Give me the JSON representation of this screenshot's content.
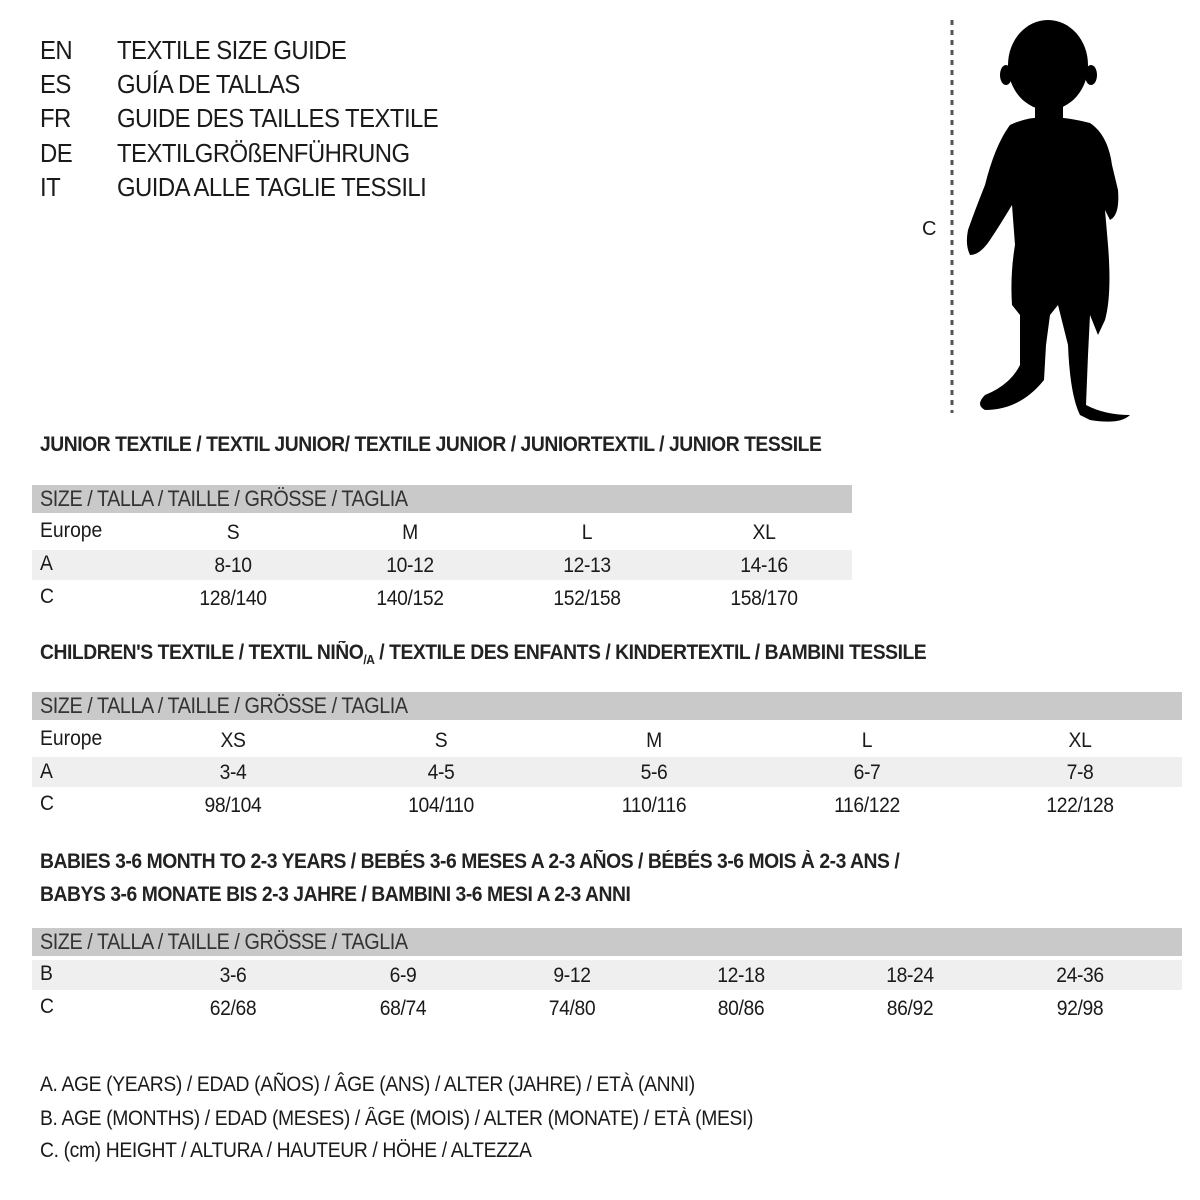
{
  "languages": [
    {
      "code": "EN",
      "text": "TEXTILE SIZE GUIDE"
    },
    {
      "code": "ES",
      "text": "GUÍA DE TALLAS"
    },
    {
      "code": "FR",
      "text": "GUIDE DES TAILLES TEXTILE"
    },
    {
      "code": "DE",
      "text": "TEXTILGRÖßENFÜHRUNG"
    },
    {
      "code": "IT",
      "text": "GUIDA ALLE TAGLIE TESSILI"
    }
  ],
  "figure": {
    "measure_label": "C",
    "icon": "child-silhouette"
  },
  "header_label": "SIZE / TALLA / TAILLE / GRÖSSE / TAGLIA",
  "colors": {
    "header_bg": "#c9c9c9",
    "row_shade": "#efefef"
  },
  "junior": {
    "title": "JUNIOR TEXTILE / TEXTIL JUNIOR/ TEXTILE JUNIOR / JUNIORTEXTIL / JUNIOR TESSILE",
    "rows": [
      {
        "label": "Europe",
        "values": [
          "S",
          "M",
          "L",
          "XL"
        ]
      },
      {
        "label": "A",
        "values": [
          "8-10",
          "10-12",
          "12-13",
          "14-16"
        ]
      },
      {
        "label": "C",
        "values": [
          "128/140",
          "140/152",
          "152/158",
          "158/170"
        ]
      }
    ]
  },
  "children": {
    "title_pre": "CHILDREN'S TEXTILE / TEXTIL NIÑO",
    "title_sub": "/A",
    "title_post": " / TEXTILE DES ENFANTS / KINDERTEXTIL / BAMBINI TESSILE",
    "rows": [
      {
        "label": "Europe",
        "values": [
          "XS",
          "S",
          "M",
          "L",
          "XL"
        ]
      },
      {
        "label": "A",
        "values": [
          "3-4",
          "4-5",
          "5-6",
          "6-7",
          "7-8"
        ]
      },
      {
        "label": "C",
        "values": [
          "98/104",
          "104/110",
          "110/116",
          "116/122",
          "122/128"
        ]
      }
    ]
  },
  "babies": {
    "title_line1": "BABIES 3-6 MONTH TO 2-3 YEARS / BEBÉS 3-6 MESES A 2-3 AÑOS / BÉBÉS 3-6 MOIS À 2-3 ANS /",
    "title_line2": "BABYS 3-6 MONATE BIS 2-3 JAHRE / BAMBINI 3-6 MESI A 2-3 ANNI",
    "rows": [
      {
        "label": "B",
        "values": [
          "3-6",
          "6-9",
          "9-12",
          "12-18",
          "18-24",
          "24-36"
        ]
      },
      {
        "label": "C",
        "values": [
          "62/68",
          "68/74",
          "74/80",
          "80/86",
          "86/92",
          "92/98"
        ]
      }
    ]
  },
  "legend": [
    "A. AGE (YEARS) / EDAD (AÑOS) / ÂGE (ANS) / ALTER (JAHRE) / ETÀ (ANNI)",
    "B. AGE (MONTHS) / EDAD (MESES) / ÂGE (MOIS) / ALTER (MONATE) / ETÀ (MESI)",
    "C. (cm) HEIGHT / ALTURA / HAUTEUR / HÖHE / ALTEZZA"
  ]
}
